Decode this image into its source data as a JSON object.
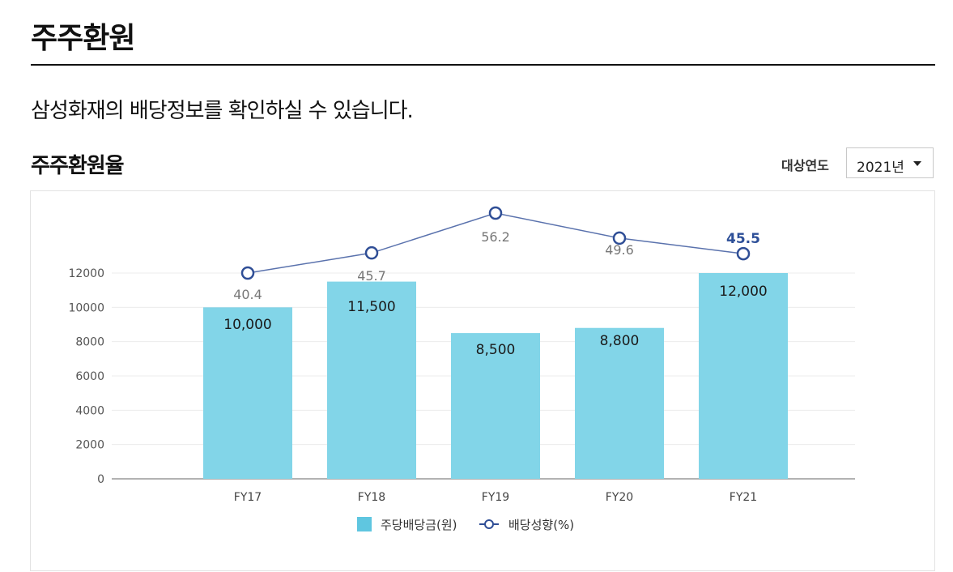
{
  "page": {
    "title": "주주환원",
    "intro": "삼성화재의 배당정보를 확인하실 수 있습니다."
  },
  "section": {
    "title": "주주환원율",
    "year_filter_label": "대상연도",
    "year_selected": "2021년"
  },
  "chart_data": {
    "type": "bar",
    "categories": [
      "FY17",
      "FY18",
      "FY19",
      "FY20",
      "FY21"
    ],
    "series": [
      {
        "name": "주당배당금(원)",
        "type": "bar",
        "values": [
          10000,
          11500,
          8500,
          8800,
          12000
        ],
        "labels": [
          "10,000",
          "11,500",
          "8,500",
          "8,800",
          "12,000"
        ],
        "color": "#82d5e8"
      },
      {
        "name": "배당성향(%)",
        "type": "line",
        "values": [
          40.4,
          45.7,
          56.2,
          49.6,
          45.5
        ],
        "labels": [
          "40.4",
          "45.7",
          "56.2",
          "49.6",
          "45.5"
        ],
        "color": "#2f4e96"
      }
    ],
    "y_ticks": [
      "0",
      "2000",
      "4000",
      "6000",
      "8000",
      "10000",
      "12000"
    ],
    "ylim": [
      0,
      12000
    ],
    "legend_position": "bottom-center",
    "grid": true
  }
}
